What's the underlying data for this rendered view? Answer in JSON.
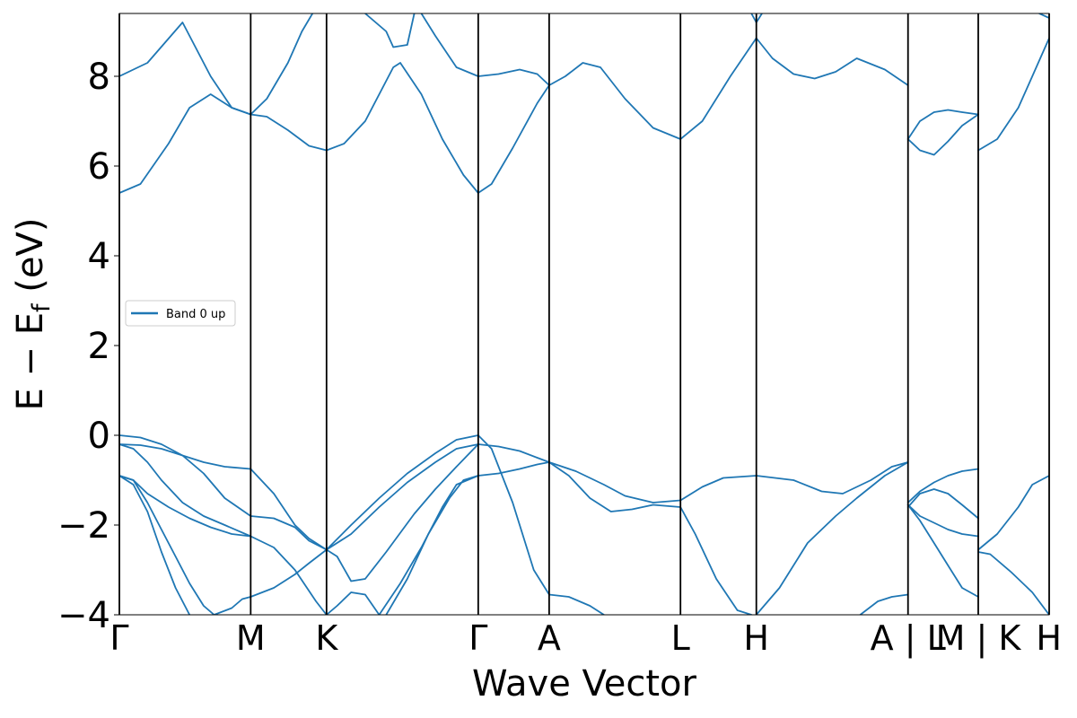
{
  "chart_data": {
    "type": "line",
    "title": "",
    "xlabel": "Wave Vector",
    "ylabel_main": "E − E",
    "ylabel_sub": "f",
    "ylabel_unit": " (eV)",
    "ylim": [
      -4,
      9.4
    ],
    "xlim": [
      0,
      13.24
    ],
    "grid": false,
    "legend_position": "center-left",
    "colors": {
      "band": "#1f77b4",
      "kline": "#000000"
    },
    "y_ticks": [
      {
        "value": -4,
        "label": "−4"
      },
      {
        "value": -2,
        "label": "−2"
      },
      {
        "value": 0,
        "label": "0"
      },
      {
        "value": 2,
        "label": "2"
      },
      {
        "value": 4,
        "label": "4"
      },
      {
        "value": 6,
        "label": "6"
      },
      {
        "value": 8,
        "label": "8"
      }
    ],
    "kpoints": [
      {
        "x": 0.0,
        "label": "Γ"
      },
      {
        "x": 1.87,
        "label": "M"
      },
      {
        "x": 2.95,
        "label": "K"
      },
      {
        "x": 5.11,
        "label": "Γ"
      },
      {
        "x": 6.12,
        "label": "A"
      },
      {
        "x": 7.99,
        "label": "L"
      },
      {
        "x": 9.07,
        "label": "H"
      },
      {
        "x": 11.23,
        "label": "A | L"
      },
      {
        "x": 12.23,
        "label": "M | K"
      },
      {
        "x": 13.24,
        "label": "H"
      }
    ],
    "series": [
      {
        "name": "Band 0 up",
        "segments": [
          {
            "x": [
              0,
              0.4,
              0.9,
              1.3,
              1.6,
              1.87
            ],
            "y": [
              8.0,
              8.3,
              9.2,
              8.0,
              7.3,
              7.15
            ]
          },
          {
            "x": [
              0,
              0.3,
              0.7,
              1.0,
              1.3,
              1.6,
              1.87
            ],
            "y": [
              5.4,
              5.6,
              6.5,
              7.3,
              7.6,
              7.3,
              7.15
            ]
          },
          {
            "x": [
              1.87,
              2.1,
              2.4,
              2.7,
              2.95
            ],
            "y": [
              7.15,
              7.1,
              6.8,
              6.45,
              6.35
            ]
          },
          {
            "x": [
              1.87,
              2.1,
              2.4,
              2.6,
              2.75
            ],
            "y": [
              7.15,
              7.5,
              8.3,
              9.0,
              9.4
            ]
          },
          {
            "x": [
              2.95,
              3.2,
              3.5,
              3.9,
              4.0,
              4.3,
              4.6,
              4.9,
              5.11
            ],
            "y": [
              6.35,
              6.5,
              7.0,
              8.2,
              8.3,
              7.6,
              6.6,
              5.8,
              5.4
            ]
          },
          {
            "x": [
              3.5,
              3.8,
              3.9,
              4.1,
              4.2
            ],
            "y": [
              9.4,
              9.0,
              8.65,
              8.7,
              9.4
            ]
          },
          {
            "x": [
              4.3,
              4.5,
              4.8,
              5.11
            ],
            "y": [
              9.4,
              8.9,
              8.2,
              8.0
            ]
          },
          {
            "x": [
              5.11,
              5.4,
              5.7,
              5.95,
              6.12
            ],
            "y": [
              8.0,
              8.05,
              8.15,
              8.05,
              7.8
            ]
          },
          {
            "x": [
              5.11,
              5.3,
              5.6,
              5.95,
              6.12
            ],
            "y": [
              5.4,
              5.6,
              6.4,
              7.4,
              7.8
            ]
          },
          {
            "x": [
              6.12,
              6.35,
              6.6,
              6.85,
              7.2,
              7.6,
              7.99
            ],
            "y": [
              7.8,
              8.0,
              8.3,
              8.2,
              7.5,
              6.85,
              6.6
            ]
          },
          {
            "x": [
              7.99,
              8.3,
              8.7,
              9.07
            ],
            "y": [
              6.6,
              7.0,
              8.0,
              8.85
            ]
          },
          {
            "x": [
              9.07,
              9.3,
              9.6,
              9.9,
              10.2,
              10.5,
              10.9,
              11.23
            ],
            "y": [
              8.85,
              8.4,
              8.05,
              7.95,
              8.1,
              8.4,
              8.15,
              7.8
            ]
          },
          {
            "x": [
              9.0,
              9.07,
              9.15
            ],
            "y": [
              9.4,
              9.2,
              9.4
            ]
          },
          {
            "x": [
              11.23,
              11.4,
              11.6,
              11.8,
              12.0,
              12.23
            ],
            "y": [
              6.6,
              6.35,
              6.25,
              6.55,
              6.9,
              7.15
            ]
          },
          {
            "x": [
              11.23,
              11.4,
              11.6,
              11.8,
              12.0,
              12.23
            ],
            "y": [
              6.6,
              7.0,
              7.2,
              7.25,
              7.2,
              7.15
            ]
          },
          {
            "x": [
              12.23,
              12.5,
              12.8,
              13.0,
              13.24
            ],
            "y": [
              6.35,
              6.6,
              7.3,
              8.0,
              8.85
            ]
          },
          {
            "x": [
              13.1,
              13.24
            ],
            "y": [
              9.4,
              9.3
            ]
          },
          {
            "x": [
              0,
              0.3,
              0.6,
              0.9,
              1.2,
              1.5,
              1.87
            ],
            "y": [
              0,
              -0.05,
              -0.2,
              -0.45,
              -0.85,
              -1.4,
              -1.8
            ]
          },
          {
            "x": [
              0,
              0.3,
              0.6,
              0.9,
              1.2,
              1.5,
              1.87
            ],
            "y": [
              -0.2,
              -0.22,
              -0.3,
              -0.45,
              -0.6,
              -0.7,
              -0.75
            ]
          },
          {
            "x": [
              0,
              0.2,
              0.4,
              0.6,
              0.9,
              1.2,
              1.5,
              1.87
            ],
            "y": [
              -0.2,
              -0.3,
              -0.6,
              -1.0,
              -1.5,
              -1.8,
              -2.0,
              -2.25
            ]
          },
          {
            "x": [
              0,
              0.2,
              0.4,
              0.7,
              1.0,
              1.3,
              1.6,
              1.87
            ],
            "y": [
              -0.9,
              -1.0,
              -1.3,
              -1.6,
              -1.85,
              -2.05,
              -2.2,
              -2.25
            ]
          },
          {
            "x": [
              0,
              0.2,
              0.4,
              0.6,
              0.8,
              1.0
            ],
            "y": [
              -0.9,
              -1.1,
              -1.7,
              -2.6,
              -3.4,
              -4.0
            ]
          },
          {
            "x": [
              0,
              0.2,
              0.4,
              0.6,
              0.8,
              1.0,
              1.2,
              1.35,
              1.6,
              1.75,
              1.87
            ],
            "y": [
              -0.9,
              -1.0,
              -1.5,
              -2.1,
              -2.7,
              -3.3,
              -3.8,
              -4.0,
              -3.85,
              -3.65,
              -3.6
            ]
          },
          {
            "x": [
              1.87,
              2.2,
              2.5,
              2.7,
              2.95
            ],
            "y": [
              -0.75,
              -1.3,
              -2.0,
              -2.3,
              -2.55
            ]
          },
          {
            "x": [
              1.87,
              2.2,
              2.5,
              2.7,
              2.95
            ],
            "y": [
              -1.8,
              -1.85,
              -2.05,
              -2.35,
              -2.55
            ]
          },
          {
            "x": [
              1.87,
              2.2,
              2.5,
              2.8,
              2.95
            ],
            "y": [
              -2.25,
              -2.5,
              -3.0,
              -3.7,
              -4.0
            ]
          },
          {
            "x": [
              1.87,
              2.2,
              2.5,
              2.7,
              2.95
            ],
            "y": [
              -3.6,
              -3.4,
              -3.1,
              -2.85,
              -2.55
            ]
          },
          {
            "x": [
              2.95,
              3.3,
              3.7,
              4.1,
              4.5,
              4.8,
              5.11
            ],
            "y": [
              -2.55,
              -2.0,
              -1.4,
              -0.85,
              -0.4,
              -0.1,
              0.0
            ]
          },
          {
            "x": [
              2.95,
              3.3,
              3.7,
              4.1,
              4.5,
              4.8,
              5.11
            ],
            "y": [
              -2.55,
              -2.2,
              -1.6,
              -1.05,
              -0.6,
              -0.3,
              -0.2
            ]
          },
          {
            "x": [
              2.95,
              3.1,
              3.3,
              3.5,
              3.8,
              4.2,
              4.5,
              4.8,
              5.11
            ],
            "y": [
              -2.55,
              -2.7,
              -3.25,
              -3.2,
              -2.6,
              -1.75,
              -1.2,
              -0.7,
              -0.2
            ]
          },
          {
            "x": [
              2.95,
              3.1,
              3.3,
              3.5,
              3.7
            ],
            "y": [
              -4.0,
              -3.8,
              -3.5,
              -3.55,
              -4.0
            ]
          },
          {
            "x": [
              3.7,
              4.0,
              4.3,
              4.6,
              4.8,
              5.11
            ],
            "y": [
              -4.0,
              -3.3,
              -2.5,
              -1.6,
              -1.1,
              -0.9
            ]
          },
          {
            "x": [
              3.8,
              4.1,
              4.4,
              4.7,
              4.9,
              5.11
            ],
            "y": [
              -4.0,
              -3.2,
              -2.2,
              -1.4,
              -1.0,
              -0.9
            ]
          },
          {
            "x": [
              5.11,
              5.3,
              5.6,
              5.9,
              6.12
            ],
            "y": [
              0.0,
              -0.3,
              -1.5,
              -3.0,
              -3.55
            ]
          },
          {
            "x": [
              5.11,
              5.4,
              5.7,
              5.95,
              6.12
            ],
            "y": [
              -0.2,
              -0.25,
              -0.35,
              -0.5,
              -0.6
            ]
          },
          {
            "x": [
              5.11,
              5.4,
              5.7,
              5.95,
              6.12
            ],
            "y": [
              -0.9,
              -0.85,
              -0.75,
              -0.65,
              -0.6
            ]
          },
          {
            "x": [
              6.12,
              6.4,
              6.7,
              6.9
            ],
            "y": [
              -3.55,
              -3.6,
              -3.8,
              -4.0
            ]
          },
          {
            "x": [
              6.12,
              6.5,
              6.9,
              7.2,
              7.6,
              7.99
            ],
            "y": [
              -0.6,
              -0.8,
              -1.1,
              -1.35,
              -1.5,
              -1.45
            ]
          },
          {
            "x": [
              6.12,
              6.4,
              6.7,
              7.0,
              7.3,
              7.6,
              7.99
            ],
            "y": [
              -0.6,
              -0.9,
              -1.4,
              -1.7,
              -1.65,
              -1.55,
              -1.6
            ]
          },
          {
            "x": [
              7.99,
              8.3,
              8.6,
              9.07
            ],
            "y": [
              -1.45,
              -1.15,
              -0.95,
              -0.9
            ]
          },
          {
            "x": [
              7.99,
              8.2,
              8.5,
              8.8,
              9.0
            ],
            "y": [
              -1.6,
              -2.2,
              -3.2,
              -3.9,
              -4.0
            ]
          },
          {
            "x": [
              9.07,
              9.6,
              10.0,
              10.3,
              10.7,
              11.0,
              11.23
            ],
            "y": [
              -0.9,
              -1.0,
              -1.25,
              -1.3,
              -1.0,
              -0.7,
              -0.6
            ]
          },
          {
            "x": [
              9.07,
              9.4,
              9.8,
              10.2,
              10.5,
              10.9,
              11.23
            ],
            "y": [
              -4.0,
              -3.4,
              -2.4,
              -1.8,
              -1.4,
              -0.9,
              -0.6
            ]
          },
          {
            "x": [
              10.55,
              10.8,
              11.0,
              11.23
            ],
            "y": [
              -4.0,
              -3.7,
              -3.6,
              -3.55
            ]
          },
          {
            "x": [
              11.23,
              11.4,
              11.6,
              11.8,
              12.0,
              12.23
            ],
            "y": [
              -1.5,
              -1.25,
              -1.05,
              -0.9,
              -0.8,
              -0.75
            ]
          },
          {
            "x": [
              11.23,
              11.4,
              11.6,
              11.8,
              12.0,
              12.23
            ],
            "y": [
              -1.6,
              -1.3,
              -1.2,
              -1.3,
              -1.55,
              -1.85
            ]
          },
          {
            "x": [
              11.23,
              11.4,
              11.6,
              11.8,
              12.0,
              12.23
            ],
            "y": [
              -1.55,
              -1.8,
              -1.95,
              -2.1,
              -2.2,
              -2.25
            ]
          },
          {
            "x": [
              11.23,
              11.4,
              11.6,
              11.8,
              12.0,
              12.23
            ],
            "y": [
              -1.55,
              -1.9,
              -2.4,
              -2.9,
              -3.4,
              -3.6
            ]
          },
          {
            "x": [
              12.23,
              12.5,
              12.8,
              13.0,
              13.24
            ],
            "y": [
              -2.55,
              -2.2,
              -1.6,
              -1.1,
              -0.9
            ]
          },
          {
            "x": [
              12.23,
              12.4,
              12.7,
              13.0,
              13.24
            ],
            "y": [
              -2.6,
              -2.65,
              -3.05,
              -3.5,
              -4.0
            ]
          }
        ]
      }
    ]
  }
}
